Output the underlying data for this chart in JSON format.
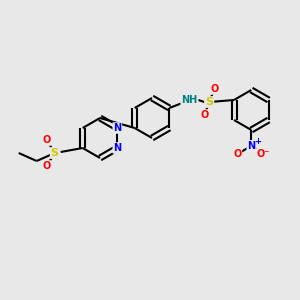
{
  "background_color": "#e8e8e8",
  "bond_color": "#000000",
  "atom_colors": {
    "N": "#0000ff",
    "O": "#ff0000",
    "S": "#cccc00",
    "H": "#008080",
    "C": "#000000"
  },
  "figsize": [
    3.0,
    3.0
  ],
  "dpi": 100
}
